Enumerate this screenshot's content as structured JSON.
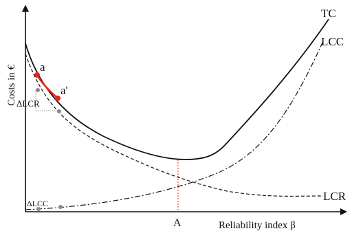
{
  "labels": {
    "y_axis": "Costs in €",
    "x_axis": "Reliability index β",
    "point_a": "a",
    "point_a_prime": "a'",
    "delta_lcr": "ΔLCR",
    "delta_lcc": "ΔLCC",
    "optimum": "A"
  },
  "series_labels": {
    "tc": "TC",
    "lcc": "LCC",
    "lcr": "LCR"
  },
  "colors": {
    "curve": "#111111",
    "highlight": "#e8231a",
    "marker_grey": "#8a8a8a",
    "helper_line": "#999999",
    "optimum_line": "#e8231a"
  },
  "chart_data": {
    "type": "line",
    "title": "",
    "xlabel": "Reliability index β",
    "ylabel": "Costs in €",
    "series": [
      {
        "name": "TC",
        "style": "solid"
      },
      {
        "name": "LCC",
        "style": "dash-dot"
      },
      {
        "name": "LCR",
        "style": "dashed"
      }
    ],
    "annotations": [
      "a",
      "a'",
      "ΔLCR",
      "ΔLCC",
      "A"
    ],
    "grid": false
  }
}
